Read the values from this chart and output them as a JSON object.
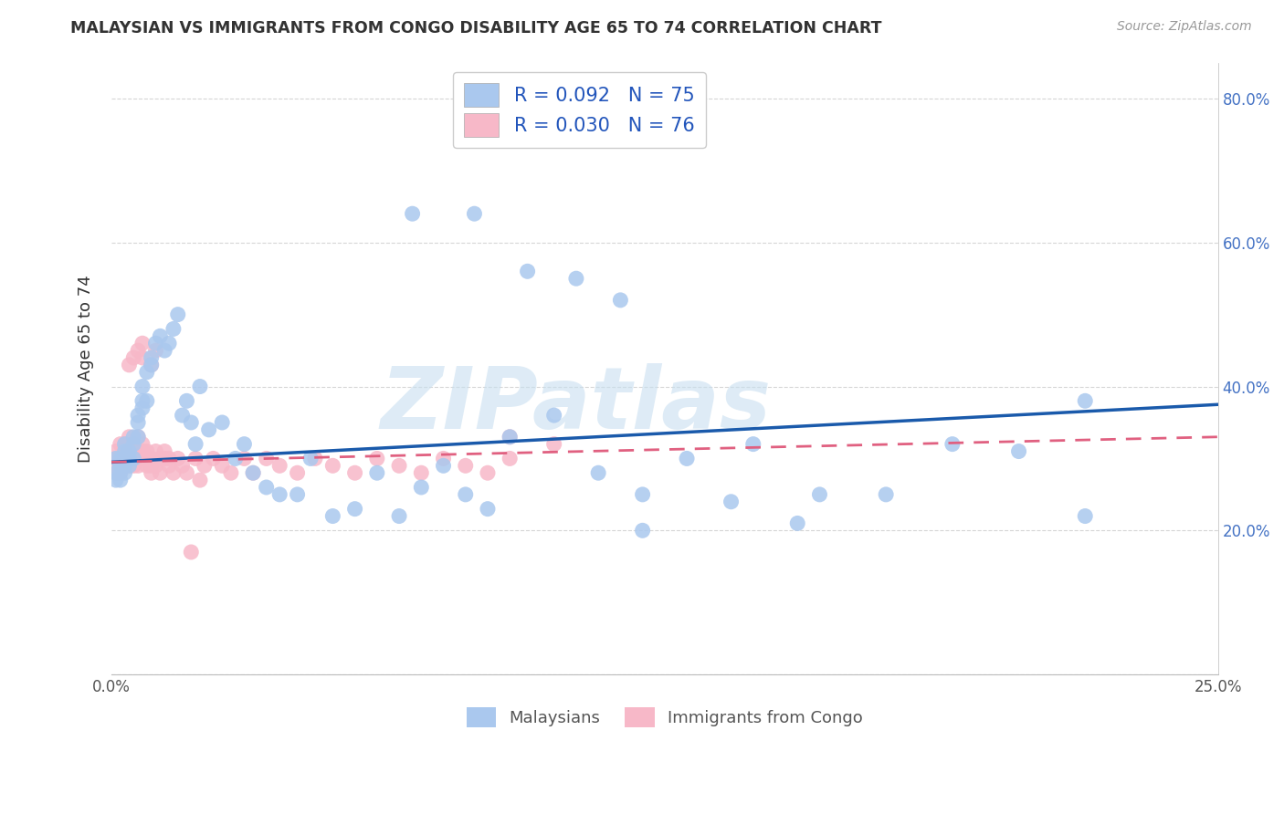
{
  "title": "MALAYSIAN VS IMMIGRANTS FROM CONGO DISABILITY AGE 65 TO 74 CORRELATION CHART",
  "source": "Source: ZipAtlas.com",
  "ylabel": "Disability Age 65 to 74",
  "xlim": [
    0.0,
    0.25
  ],
  "ylim": [
    0.0,
    0.85
  ],
  "xticks": [
    0.0,
    0.05,
    0.1,
    0.15,
    0.2,
    0.25
  ],
  "xticklabels": [
    "0.0%",
    "",
    "",
    "",
    "",
    "25.0%"
  ],
  "yticks": [
    0.0,
    0.2,
    0.4,
    0.6,
    0.8
  ],
  "yticklabels": [
    "",
    "20.0%",
    "40.0%",
    "60.0%",
    "80.0%"
  ],
  "grid_color": "#cccccc",
  "background_color": "#ffffff",
  "malaysian_color": "#aac8ee",
  "congo_color": "#f7b8c8",
  "malaysian_line_color": "#1a5aab",
  "congo_line_color": "#e06080",
  "r_malaysian": 0.092,
  "n_malaysian": 75,
  "r_congo": 0.03,
  "n_congo": 76,
  "legend_label_malaysian": "Malaysians",
  "legend_label_congo": "Immigrants from Congo",
  "watermark": "ZIPatlas",
  "malaysian_x": [
    0.001,
    0.001,
    0.001,
    0.002,
    0.002,
    0.002,
    0.002,
    0.003,
    0.003,
    0.003,
    0.003,
    0.004,
    0.004,
    0.004,
    0.005,
    0.005,
    0.005,
    0.006,
    0.006,
    0.006,
    0.007,
    0.007,
    0.007,
    0.008,
    0.008,
    0.009,
    0.009,
    0.01,
    0.011,
    0.012,
    0.013,
    0.014,
    0.015,
    0.016,
    0.017,
    0.018,
    0.019,
    0.02,
    0.022,
    0.025,
    0.028,
    0.03,
    0.032,
    0.035,
    0.038,
    0.042,
    0.045,
    0.05,
    0.055,
    0.06,
    0.065,
    0.07,
    0.075,
    0.08,
    0.085,
    0.09,
    0.1,
    0.11,
    0.12,
    0.13,
    0.145,
    0.16,
    0.175,
    0.19,
    0.205,
    0.22,
    0.068,
    0.082,
    0.094,
    0.105,
    0.115,
    0.12,
    0.14,
    0.155,
    0.22
  ],
  "malaysian_y": [
    0.3,
    0.28,
    0.27,
    0.29,
    0.28,
    0.27,
    0.3,
    0.29,
    0.31,
    0.28,
    0.32,
    0.29,
    0.3,
    0.31,
    0.3,
    0.32,
    0.33,
    0.33,
    0.35,
    0.36,
    0.37,
    0.38,
    0.4,
    0.38,
    0.42,
    0.44,
    0.43,
    0.46,
    0.47,
    0.45,
    0.46,
    0.48,
    0.5,
    0.36,
    0.38,
    0.35,
    0.32,
    0.4,
    0.34,
    0.35,
    0.3,
    0.32,
    0.28,
    0.26,
    0.25,
    0.25,
    0.3,
    0.22,
    0.23,
    0.28,
    0.22,
    0.26,
    0.29,
    0.25,
    0.23,
    0.33,
    0.36,
    0.28,
    0.25,
    0.3,
    0.32,
    0.25,
    0.25,
    0.32,
    0.31,
    0.38,
    0.64,
    0.64,
    0.56,
    0.55,
    0.52,
    0.2,
    0.24,
    0.21,
    0.22
  ],
  "congo_x": [
    0.001,
    0.001,
    0.001,
    0.001,
    0.002,
    0.002,
    0.002,
    0.002,
    0.002,
    0.003,
    0.003,
    0.003,
    0.003,
    0.004,
    0.004,
    0.004,
    0.004,
    0.005,
    0.005,
    0.005,
    0.005,
    0.006,
    0.006,
    0.006,
    0.007,
    0.007,
    0.007,
    0.008,
    0.008,
    0.008,
    0.009,
    0.009,
    0.009,
    0.01,
    0.01,
    0.011,
    0.011,
    0.012,
    0.012,
    0.013,
    0.013,
    0.014,
    0.015,
    0.016,
    0.017,
    0.018,
    0.019,
    0.02,
    0.021,
    0.023,
    0.025,
    0.027,
    0.03,
    0.032,
    0.035,
    0.038,
    0.042,
    0.046,
    0.05,
    0.055,
    0.06,
    0.065,
    0.07,
    0.075,
    0.08,
    0.085,
    0.09,
    0.1,
    0.004,
    0.005,
    0.006,
    0.007,
    0.007,
    0.009,
    0.01,
    0.09
  ],
  "congo_y": [
    0.3,
    0.29,
    0.28,
    0.31,
    0.3,
    0.29,
    0.3,
    0.32,
    0.28,
    0.31,
    0.3,
    0.29,
    0.32,
    0.31,
    0.3,
    0.29,
    0.33,
    0.3,
    0.31,
    0.32,
    0.29,
    0.33,
    0.3,
    0.29,
    0.32,
    0.31,
    0.3,
    0.29,
    0.31,
    0.3,
    0.29,
    0.3,
    0.28,
    0.31,
    0.29,
    0.3,
    0.28,
    0.3,
    0.31,
    0.29,
    0.3,
    0.28,
    0.3,
    0.29,
    0.28,
    0.17,
    0.3,
    0.27,
    0.29,
    0.3,
    0.29,
    0.28,
    0.3,
    0.28,
    0.3,
    0.29,
    0.28,
    0.3,
    0.29,
    0.28,
    0.3,
    0.29,
    0.28,
    0.3,
    0.29,
    0.28,
    0.3,
    0.32,
    0.43,
    0.44,
    0.45,
    0.46,
    0.44,
    0.43,
    0.45,
    0.33
  ]
}
